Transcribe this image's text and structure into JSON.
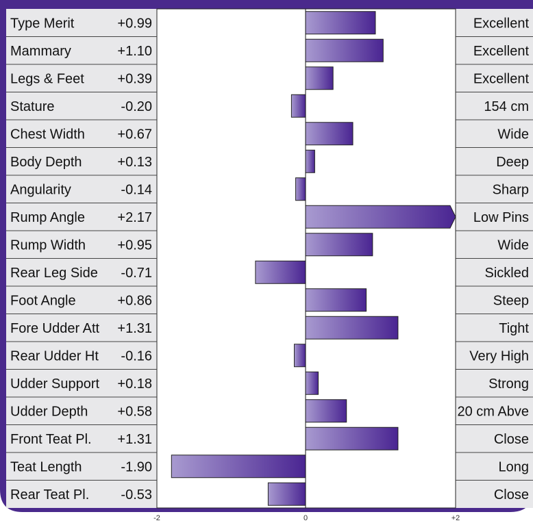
{
  "chart_data": {
    "type": "bar",
    "orientation": "horizontal",
    "title": "",
    "xlabel": "",
    "ylabel": "",
    "xlim": [
      -2,
      2
    ],
    "ticks": [
      "-2",
      "0",
      "+2"
    ],
    "grid": false,
    "legend": "none",
    "colors": {
      "frame": "#4a2a8c",
      "bar_start": "#a89ad0",
      "bar_end": "#4a2592",
      "panel": "#e8e8ea",
      "row_line": "#444444"
    },
    "rows": [
      {
        "trait": "Type Merit",
        "value_label": "+0.99",
        "value": 0.99,
        "descriptor": "Excellent"
      },
      {
        "trait": "Mammary",
        "value_label": "+1.10",
        "value": 1.1,
        "descriptor": "Excellent"
      },
      {
        "trait": "Legs & Feet",
        "value_label": "+0.39",
        "value": 0.39,
        "descriptor": "Excellent"
      },
      {
        "trait": "Stature",
        "value_label": "-0.20",
        "value": -0.2,
        "descriptor": "154 cm"
      },
      {
        "trait": "Chest Width",
        "value_label": "+0.67",
        "value": 0.67,
        "descriptor": "Wide"
      },
      {
        "trait": "Body Depth",
        "value_label": "+0.13",
        "value": 0.13,
        "descriptor": "Deep"
      },
      {
        "trait": "Angularity",
        "value_label": "-0.14",
        "value": -0.14,
        "descriptor": "Sharp"
      },
      {
        "trait": "Rump Angle",
        "value_label": "+2.17",
        "value": 2.17,
        "descriptor": "Low Pins"
      },
      {
        "trait": "Rump Width",
        "value_label": "+0.95",
        "value": 0.95,
        "descriptor": "Wide"
      },
      {
        "trait": "Rear Leg Side",
        "value_label": "-0.71",
        "value": -0.71,
        "descriptor": "Sickled"
      },
      {
        "trait": "Foot Angle",
        "value_label": "+0.86",
        "value": 0.86,
        "descriptor": "Steep"
      },
      {
        "trait": "Fore Udder Att",
        "value_label": "+1.31",
        "value": 1.31,
        "descriptor": "Tight"
      },
      {
        "trait": "Rear Udder Ht",
        "value_label": "-0.16",
        "value": -0.16,
        "descriptor": "Very High"
      },
      {
        "trait": "Udder Support",
        "value_label": "+0.18",
        "value": 0.18,
        "descriptor": "Strong"
      },
      {
        "trait": "Udder Depth",
        "value_label": "+0.58",
        "value": 0.58,
        "descriptor": "20 cm Abve"
      },
      {
        "trait": "Front Teat Pl.",
        "value_label": "+1.31",
        "value": 1.31,
        "descriptor": "Close"
      },
      {
        "trait": "Teat Length",
        "value_label": "-1.90",
        "value": -1.9,
        "descriptor": "Long"
      },
      {
        "trait": "Rear Teat Pl.",
        "value_label": "-0.53",
        "value": -0.53,
        "descriptor": "Close"
      }
    ]
  }
}
